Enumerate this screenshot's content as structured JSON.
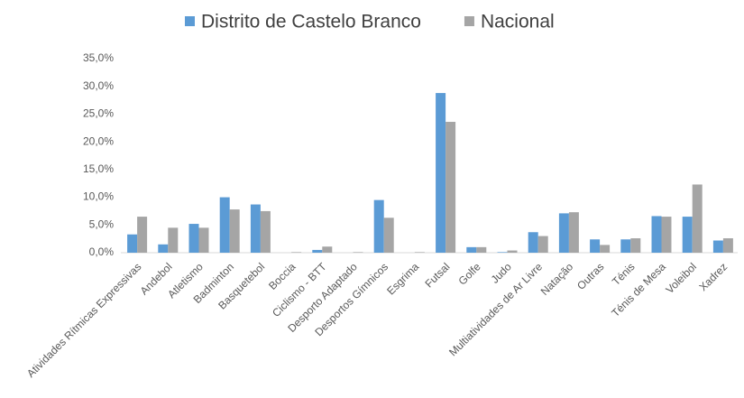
{
  "chart_data": {
    "type": "bar",
    "categories": [
      "Atividades Rítmicas Expressivas",
      "Andebol",
      "Atletismo",
      "Badminton",
      "Basquetebol",
      "Boccia",
      "Ciclismo - BTT",
      "Desporto Adaptado",
      "Desportos Gímnicos",
      "Esgrima",
      "Futsal",
      "Golfe",
      "Judo",
      "Multiatividades de Ar Livre",
      "Natação",
      "Outras",
      "Ténis",
      "Ténis de Mesa",
      "Voleibol",
      "Xadrez"
    ],
    "series": [
      {
        "name": "Distrito de Castelo Branco",
        "color": "#5b9bd5",
        "values": [
          3.3,
          1.5,
          5.2,
          10.0,
          8.7,
          0,
          0.5,
          0,
          9.5,
          0,
          28.8,
          1.0,
          0.1,
          3.7,
          7.1,
          2.4,
          2.4,
          6.6,
          6.5,
          2.2
        ]
      },
      {
        "name": "Nacional",
        "color": "#a5a5a5",
        "values": [
          6.5,
          4.5,
          4.5,
          7.8,
          7.5,
          0.1,
          1.1,
          0.1,
          6.3,
          0.1,
          23.6,
          1.0,
          0.4,
          3.0,
          7.3,
          1.4,
          2.6,
          6.5,
          12.3,
          2.6
        ]
      }
    ],
    "ylim": [
      0,
      35
    ],
    "yticks": [
      {
        "value": 0,
        "label": "0,0%"
      },
      {
        "value": 5,
        "label": "5,0%"
      },
      {
        "value": 10,
        "label": "10,0%"
      },
      {
        "value": 15,
        "label": "15,0%"
      },
      {
        "value": 20,
        "label": "20,0%"
      },
      {
        "value": 25,
        "label": "25,0%"
      },
      {
        "value": 30,
        "label": "30,0%"
      },
      {
        "value": 35,
        "label": "35,0%"
      }
    ],
    "grid": false,
    "legend": "top"
  }
}
